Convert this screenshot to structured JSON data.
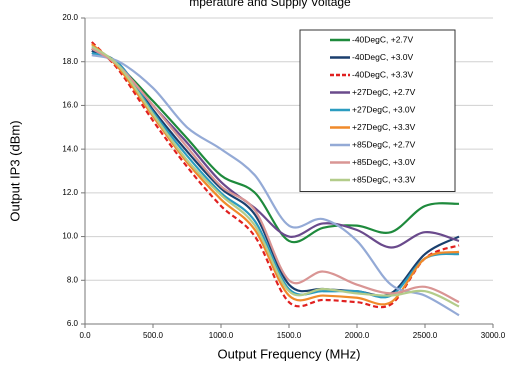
{
  "chart_data": {
    "type": "line",
    "title": "mperature and Supply Voltage",
    "x_label": "Output Frequency (MHz)",
    "y_label": "Output IP3 (dBm)",
    "x": [
      50,
      250,
      500,
      750,
      1000,
      1250,
      1500,
      1750,
      2000,
      2250,
      2500,
      2750
    ],
    "xlim": [
      0,
      3000
    ],
    "xticks": [
      {
        "value": 0,
        "label": "0.0"
      },
      {
        "value": 500,
        "label": "500.0"
      },
      {
        "value": 1000,
        "label": "1000.0"
      },
      {
        "value": 1500,
        "label": "1500.0"
      },
      {
        "value": 2000,
        "label": "2000.0"
      },
      {
        "value": 2500,
        "label": "2500.0"
      },
      {
        "value": 3000,
        "label": "3000.0"
      }
    ],
    "ylim": [
      6,
      20
    ],
    "yticks": [
      {
        "value": 6,
        "label": "6.0"
      },
      {
        "value": 8,
        "label": "8.0"
      },
      {
        "value": 10,
        "label": "10.0"
      },
      {
        "value": 12,
        "label": "12.0"
      },
      {
        "value": 14,
        "label": "14.0"
      },
      {
        "value": 16,
        "label": "16.0"
      },
      {
        "value": 18,
        "label": "18.0"
      },
      {
        "value": 20,
        "label": "20.0"
      }
    ],
    "grid": true,
    "legend": "upper right",
    "series": [
      {
        "name": "-40DegC, +2.7V",
        "color": "#1e8a3c",
        "values": [
          18.6,
          17.8,
          16.2,
          14.5,
          12.8,
          12.0,
          9.8,
          10.4,
          10.5,
          10.2,
          11.4,
          11.5
        ]
      },
      {
        "name": "-40DegC, +3.0V",
        "color": "#1a3f6e",
        "values": [
          18.5,
          17.9,
          15.8,
          13.9,
          12.2,
          11.0,
          7.8,
          7.6,
          7.5,
          7.4,
          9.2,
          10.0
        ]
      },
      {
        "name": "-40DegC, +3.3V",
        "color": "#e02020",
        "dashed": true,
        "values": [
          18.9,
          17.6,
          15.3,
          13.2,
          11.4,
          10.0,
          7.0,
          7.1,
          7.0,
          6.9,
          9.0,
          9.6
        ]
      },
      {
        "name": "+27DegC, +2.7V",
        "color": "#6a4a8c",
        "values": [
          18.6,
          17.8,
          16.0,
          14.3,
          12.5,
          11.3,
          10.0,
          10.6,
          10.3,
          9.5,
          10.2,
          9.8
        ]
      },
      {
        "name": "+27DegC, +3.0V",
        "color": "#2b9cc0",
        "values": [
          18.4,
          17.9,
          15.7,
          13.7,
          12.0,
          10.7,
          7.6,
          7.5,
          7.5,
          7.3,
          9.0,
          9.2
        ]
      },
      {
        "name": "+27DegC, +3.3V",
        "color": "#f08a2a",
        "values": [
          18.8,
          17.7,
          15.5,
          13.4,
          11.7,
          10.3,
          7.3,
          7.3,
          7.2,
          7.0,
          9.0,
          9.3
        ]
      },
      {
        "name": "+85DegC, +2.7V",
        "color": "#94aad6",
        "values": [
          18.3,
          18.0,
          16.8,
          15.0,
          14.0,
          12.8,
          10.5,
          10.8,
          9.8,
          7.8,
          7.3,
          6.4
        ]
      },
      {
        "name": "+85DegC, +3.0V",
        "color": "#d99594",
        "values": [
          18.6,
          17.8,
          16.0,
          14.1,
          12.3,
          11.2,
          8.0,
          8.4,
          7.8,
          7.4,
          7.7,
          7.0
        ]
      },
      {
        "name": "+85DegC, +3.3V",
        "color": "#b3cc8a",
        "values": [
          18.7,
          17.8,
          15.6,
          13.5,
          11.9,
          10.5,
          7.5,
          7.6,
          7.4,
          7.3,
          7.5,
          6.8
        ]
      }
    ]
  }
}
